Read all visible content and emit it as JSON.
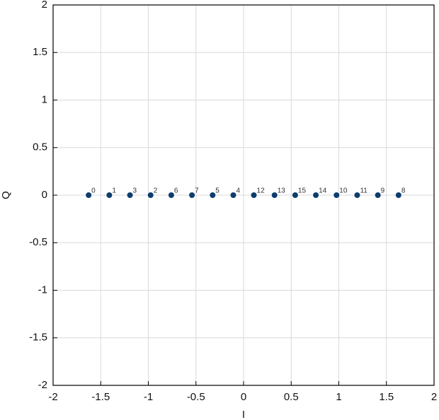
{
  "chart_data": {
    "type": "scatter",
    "xlabel": "I",
    "ylabel": "Q",
    "x": [
      -1.627,
      -1.41,
      -1.193,
      -0.976,
      -0.759,
      -0.542,
      -0.325,
      -0.108,
      0.108,
      0.325,
      0.542,
      0.759,
      0.976,
      1.193,
      1.41,
      1.627
    ],
    "values": [
      0,
      0,
      0,
      0,
      0,
      0,
      0,
      0,
      0,
      0,
      0,
      0,
      0,
      0,
      0,
      0
    ],
    "point_labels": [
      "0",
      "1",
      "3",
      "2",
      "6",
      "7",
      "5",
      "4",
      "12",
      "13",
      "15",
      "14",
      "10",
      "11",
      "9",
      "8"
    ],
    "color": "#0d3d6e",
    "xlim": [
      -2,
      2
    ],
    "ylim": [
      -2,
      2
    ],
    "xticks": [
      -2,
      -1.5,
      -1,
      -0.5,
      0,
      0.5,
      1,
      1.5,
      2
    ],
    "yticks": [
      -2,
      -1.5,
      -1,
      -0.5,
      0,
      0.5,
      1,
      1.5,
      2
    ],
    "grid": true
  }
}
